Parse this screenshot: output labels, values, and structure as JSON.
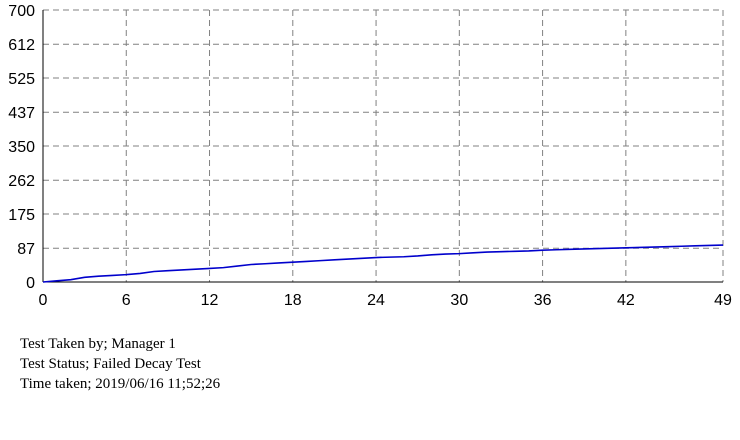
{
  "chart_data": {
    "type": "line",
    "title": "",
    "xlabel": "",
    "ylabel": "",
    "xlim": [
      0,
      49
    ],
    "ylim": [
      0,
      700
    ],
    "x_ticks": [
      "0",
      "6",
      "12",
      "18",
      "24",
      "30",
      "36",
      "42",
      "49"
    ],
    "y_ticks": [
      "0",
      "87",
      "175",
      "262",
      "350",
      "437",
      "525",
      "612",
      "700"
    ],
    "grid": true,
    "legend": "none",
    "series": [
      {
        "color": "#0000cc",
        "x": [
          0,
          1,
          2,
          3,
          4,
          5,
          6,
          7,
          8,
          9,
          10,
          11,
          12,
          13,
          14,
          15,
          16,
          17,
          18,
          19,
          20,
          21,
          22,
          23,
          24,
          25,
          26,
          27,
          28,
          29,
          30,
          31,
          32,
          33,
          34,
          35,
          36,
          37,
          38,
          39,
          40,
          41,
          42,
          43,
          44,
          45,
          46,
          47,
          48,
          49
        ],
        "y": [
          0,
          3,
          6,
          12,
          15,
          17,
          19,
          22,
          27,
          29,
          31,
          33,
          35,
          37,
          41,
          45,
          47,
          49,
          51,
          53,
          55,
          57,
          59,
          61,
          63,
          64,
          65,
          67,
          70,
          72,
          73,
          75,
          77,
          78,
          79,
          80,
          82,
          83,
          84,
          85,
          86,
          87,
          88,
          89,
          90,
          91,
          92,
          93,
          94,
          95
        ]
      }
    ]
  },
  "info": {
    "taken_by": "Test Taken by; Manager 1",
    "status": "Test Status; Failed Decay Test",
    "time": "Time taken; 2019/06/16 11;52;26"
  }
}
